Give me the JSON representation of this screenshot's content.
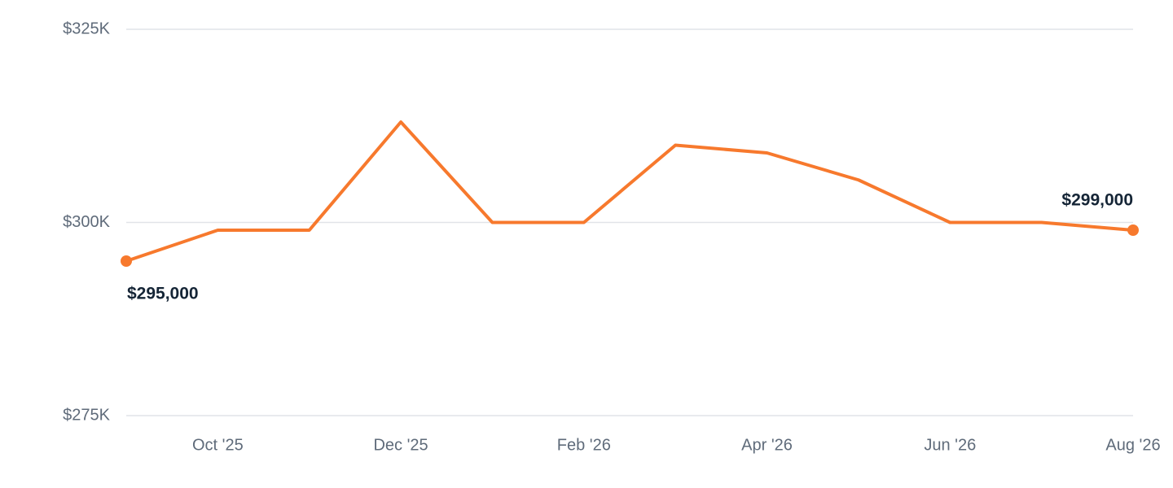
{
  "chart_data": {
    "type": "line",
    "categories": [
      null,
      "Oct '25",
      null,
      "Dec '25",
      null,
      "Feb '26",
      null,
      "Apr '26",
      null,
      "Jun '26",
      null,
      "Aug '26"
    ],
    "series": [
      {
        "color": "#f7792d",
        "values": [
          295000,
          299000,
          299000,
          313000,
          300000,
          300000,
          310000,
          309000,
          305500,
          300000,
          300000,
          299000
        ],
        "value_labels": [
          "$295,000",
          null,
          null,
          null,
          null,
          null,
          null,
          null,
          null,
          null,
          null,
          "$299,000"
        ]
      }
    ],
    "ylim": [
      275000,
      325000
    ],
    "yticks": [
      {
        "value": 275000,
        "label": "$275K"
      },
      {
        "value": 300000,
        "label": "$300K"
      },
      {
        "value": 325000,
        "label": "$325K"
      }
    ],
    "grid": true
  }
}
